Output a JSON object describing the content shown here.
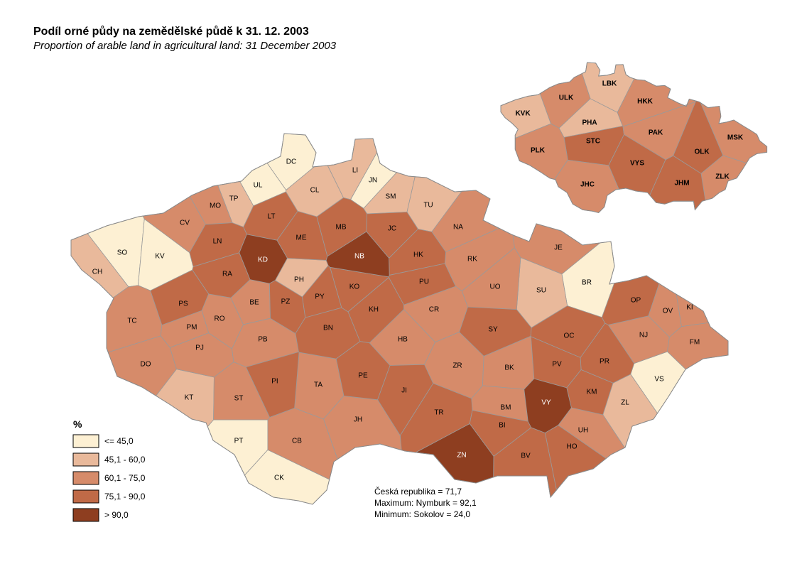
{
  "title": "Podíl orné půdy na zemědělské půdě k 31. 12. 2003",
  "subtitle": "Proportion of arable land in agricultural land: 31 December 2003",
  "legend": {
    "title": "%",
    "items": [
      {
        "label": "<= 45,0",
        "color": "#fdf0d3"
      },
      {
        "label": "45,1 - 60,0",
        "color": "#e9b99b"
      },
      {
        "label": "60,1 - 75,0",
        "color": "#d68b6a"
      },
      {
        "label": "75,1 - 90,0",
        "color": "#c06a47"
      },
      {
        "label": "> 90,0",
        "color": "#8e3e20"
      }
    ]
  },
  "stats": [
    "Česká republika = 71,7",
    "Maximum: Nymburk = 92,1",
    "Minimum: Sokolov = 24,0"
  ],
  "districts": [
    {
      "code": "DC",
      "color": "#fdf0d3"
    },
    {
      "code": "UL",
      "color": "#fdf0d3"
    },
    {
      "code": "JN",
      "color": "#fdf0d3"
    },
    {
      "code": "SO",
      "color": "#fdf0d3"
    },
    {
      "code": "KV",
      "color": "#fdf0d3"
    },
    {
      "code": "PT",
      "color": "#fdf0d3"
    },
    {
      "code": "CK",
      "color": "#fdf0d3"
    },
    {
      "code": "BR",
      "color": "#fdf0d3"
    },
    {
      "code": "VS",
      "color": "#fdf0d3"
    },
    {
      "code": "LI",
      "color": "#e9b99b"
    },
    {
      "code": "TP",
      "color": "#e9b99b"
    },
    {
      "code": "CL",
      "color": "#e9b99b"
    },
    {
      "code": "SM",
      "color": "#e9b99b"
    },
    {
      "code": "TU",
      "color": "#e9b99b"
    },
    {
      "code": "CH",
      "color": "#e9b99b"
    },
    {
      "code": "KT",
      "color": "#e9b99b"
    },
    {
      "code": "SU",
      "color": "#e9b99b"
    },
    {
      "code": "ZL",
      "color": "#e9b99b"
    },
    {
      "code": "PH",
      "color": "#e9b99b"
    },
    {
      "code": "MO",
      "color": "#d68b6a"
    },
    {
      "code": "CV",
      "color": "#d68b6a"
    },
    {
      "code": "NA",
      "color": "#d68b6a"
    },
    {
      "code": "RK",
      "color": "#d68b6a"
    },
    {
      "code": "UO",
      "color": "#d68b6a"
    },
    {
      "code": "JE",
      "color": "#d68b6a"
    },
    {
      "code": "CR",
      "color": "#d68b6a"
    },
    {
      "code": "HB",
      "color": "#d68b6a"
    },
    {
      "code": "ZR",
      "color": "#d68b6a"
    },
    {
      "code": "BK",
      "color": "#d68b6a"
    },
    {
      "code": "TC",
      "color": "#d68b6a"
    },
    {
      "code": "DO",
      "color": "#d68b6a"
    },
    {
      "code": "PJ",
      "color": "#d68b6a"
    },
    {
      "code": "RO",
      "color": "#d68b6a"
    },
    {
      "code": "BE",
      "color": "#d68b6a"
    },
    {
      "code": "PB",
      "color": "#d68b6a"
    },
    {
      "code": "TA",
      "color": "#d68b6a"
    },
    {
      "code": "JH",
      "color": "#d68b6a"
    },
    {
      "code": "CB",
      "color": "#d68b6a"
    },
    {
      "code": "ST",
      "color": "#d68b6a"
    },
    {
      "code": "UH",
      "color": "#d68b6a"
    },
    {
      "code": "NJ",
      "color": "#d68b6a"
    },
    {
      "code": "FM",
      "color": "#d68b6a"
    },
    {
      "code": "KI",
      "color": "#d68b6a"
    },
    {
      "code": "OV",
      "color": "#d68b6a"
    },
    {
      "code": "PM",
      "color": "#d68b6a"
    },
    {
      "code": "BM",
      "color": "#d68b6a"
    },
    {
      "code": "LT",
      "color": "#c06a47"
    },
    {
      "code": "LN",
      "color": "#c06a47"
    },
    {
      "code": "RA",
      "color": "#c06a47"
    },
    {
      "code": "ME",
      "color": "#c06a47"
    },
    {
      "code": "MB",
      "color": "#c06a47"
    },
    {
      "code": "JC",
      "color": "#c06a47"
    },
    {
      "code": "HK",
      "color": "#c06a47"
    },
    {
      "code": "PU",
      "color": "#c06a47"
    },
    {
      "code": "KO",
      "color": "#c06a47"
    },
    {
      "code": "KH",
      "color": "#c06a47"
    },
    {
      "code": "PY",
      "color": "#c06a47"
    },
    {
      "code": "PZ",
      "color": "#c06a47"
    },
    {
      "code": "BN",
      "color": "#c06a47"
    },
    {
      "code": "PS",
      "color": "#c06a47"
    },
    {
      "code": "PI",
      "color": "#c06a47"
    },
    {
      "code": "PE",
      "color": "#c06a47"
    },
    {
      "code": "JI",
      "color": "#c06a47"
    },
    {
      "code": "TR",
      "color": "#c06a47"
    },
    {
      "code": "SY",
      "color": "#c06a47"
    },
    {
      "code": "OC",
      "color": "#c06a47"
    },
    {
      "code": "OP",
      "color": "#c06a47"
    },
    {
      "code": "PR",
      "color": "#c06a47"
    },
    {
      "code": "PV",
      "color": "#c06a47"
    },
    {
      "code": "KM",
      "color": "#c06a47"
    },
    {
      "code": "HO",
      "color": "#c06a47"
    },
    {
      "code": "BV",
      "color": "#c06a47"
    },
    {
      "code": "BI",
      "color": "#c06a47"
    },
    {
      "code": "KD",
      "color": "#8e3e20"
    },
    {
      "code": "NB",
      "color": "#8e3e20"
    },
    {
      "code": "VY",
      "color": "#8e3e20"
    },
    {
      "code": "ZN",
      "color": "#8e3e20"
    }
  ],
  "regions": [
    {
      "code": "KVK",
      "color": "#e9b99b"
    },
    {
      "code": "ULK",
      "color": "#d68b6a"
    },
    {
      "code": "LBK",
      "color": "#e9b99b"
    },
    {
      "code": "HKK",
      "color": "#d68b6a"
    },
    {
      "code": "PHA",
      "color": "#e9b99b"
    },
    {
      "code": "STC",
      "color": "#c06a47"
    },
    {
      "code": "PAK",
      "color": "#d68b6a"
    },
    {
      "code": "MSK",
      "color": "#d68b6a"
    },
    {
      "code": "OLK",
      "color": "#c06a47"
    },
    {
      "code": "PLK",
      "color": "#d68b6a"
    },
    {
      "code": "VYS",
      "color": "#c06a47"
    },
    {
      "code": "ZLK",
      "color": "#d68b6a"
    },
    {
      "code": "JHC",
      "color": "#d68b6a"
    },
    {
      "code": "JHM",
      "color": "#c06a47"
    }
  ]
}
